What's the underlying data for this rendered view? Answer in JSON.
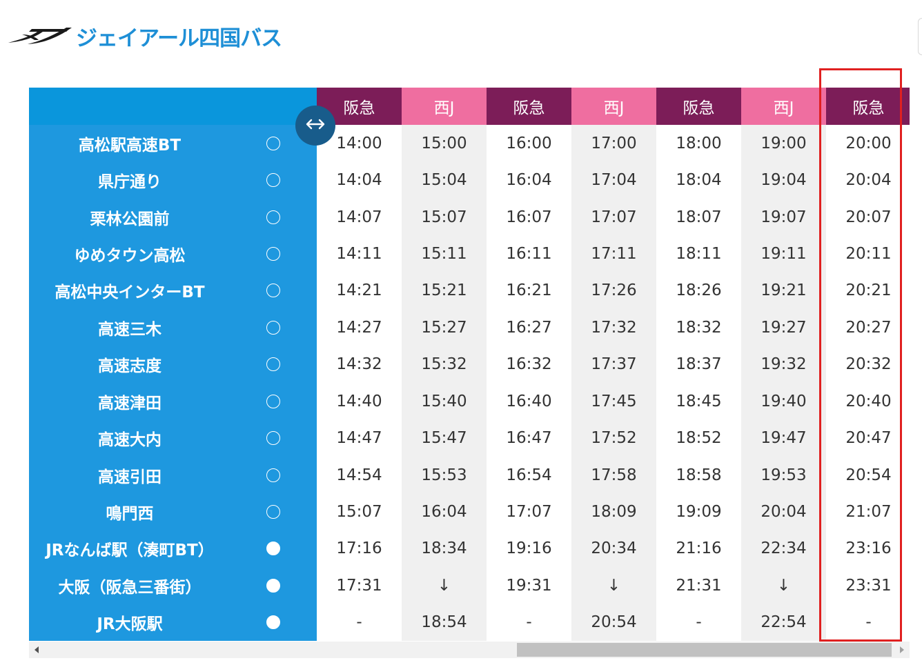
{
  "brand": {
    "name": "ジェイアール四国バス",
    "colors": {
      "logo_blue": "#1e8fd6",
      "logo_mark": "#1a1a1a"
    }
  },
  "colors": {
    "stop_column": "#1e98df",
    "header_hankyu": "#7c1d58",
    "header_nishi_j": "#ef6ea0",
    "highlight_box": "#e02020",
    "scroll_toggle": "#185c8b"
  },
  "timetable": {
    "stops": [
      {
        "name": "高松駅高速BT",
        "mark": "○"
      },
      {
        "name": "県庁通り",
        "mark": "○"
      },
      {
        "name": "栗林公園前",
        "mark": "○"
      },
      {
        "name": "ゆめタウン高松",
        "mark": "○"
      },
      {
        "name": "高松中央インターBT",
        "mark": "○"
      },
      {
        "name": "高速三木",
        "mark": "○"
      },
      {
        "name": "高速志度",
        "mark": "○"
      },
      {
        "name": "高速津田",
        "mark": "○"
      },
      {
        "name": "高速大内",
        "mark": "○"
      },
      {
        "name": "高速引田",
        "mark": "○"
      },
      {
        "name": "鳴門西",
        "mark": "○"
      },
      {
        "name": "JRなんば駅（湊町BT）",
        "mark": "●"
      },
      {
        "name": "大阪（阪急三番街）",
        "mark": "●"
      },
      {
        "name": "JR大阪駅",
        "mark": "●"
      }
    ],
    "trips": [
      {
        "operator": "阪急",
        "type": "hankyu",
        "times": [
          "14:00",
          "14:04",
          "14:07",
          "14:11",
          "14:21",
          "14:27",
          "14:32",
          "14:40",
          "14:47",
          "14:54",
          "15:07",
          "17:16",
          "17:31",
          "-"
        ]
      },
      {
        "operator": "西J",
        "type": "nishij",
        "times": [
          "15:00",
          "15:04",
          "15:07",
          "15:11",
          "15:21",
          "15:27",
          "15:32",
          "15:40",
          "15:47",
          "15:53",
          "16:04",
          "18:34",
          "↓",
          "18:54"
        ]
      },
      {
        "operator": "阪急",
        "type": "hankyu",
        "times": [
          "16:00",
          "16:04",
          "16:07",
          "16:11",
          "16:21",
          "16:27",
          "16:32",
          "16:40",
          "16:47",
          "16:54",
          "17:07",
          "19:16",
          "19:31",
          "-"
        ]
      },
      {
        "operator": "西J",
        "type": "nishij",
        "times": [
          "17:00",
          "17:04",
          "17:07",
          "17:11",
          "17:26",
          "17:32",
          "17:37",
          "17:45",
          "17:52",
          "17:58",
          "18:09",
          "20:34",
          "↓",
          "20:54"
        ]
      },
      {
        "operator": "阪急",
        "type": "hankyu",
        "times": [
          "18:00",
          "18:04",
          "18:07",
          "18:11",
          "18:26",
          "18:32",
          "18:37",
          "18:45",
          "18:52",
          "18:58",
          "19:09",
          "21:16",
          "21:31",
          "-"
        ]
      },
      {
        "operator": "西J",
        "type": "nishij",
        "times": [
          "19:00",
          "19:04",
          "19:07",
          "19:11",
          "19:21",
          "19:27",
          "19:32",
          "19:40",
          "19:47",
          "19:53",
          "20:04",
          "22:34",
          "↓",
          "22:54"
        ]
      },
      {
        "operator": "阪急",
        "type": "hankyu",
        "times": [
          "20:00",
          "20:04",
          "20:07",
          "20:11",
          "20:21",
          "20:27",
          "20:32",
          "20:40",
          "20:47",
          "20:54",
          "21:07",
          "23:16",
          "23:31",
          "-"
        ]
      }
    ],
    "highlighted_trip_index": 6
  },
  "icons": {
    "scroll_toggle": "left-right-arrow-icon",
    "scroll_left": "triangle-left-icon",
    "scroll_right": "triangle-right-icon",
    "logo_mark": "jr-swoosh-logo-icon"
  }
}
